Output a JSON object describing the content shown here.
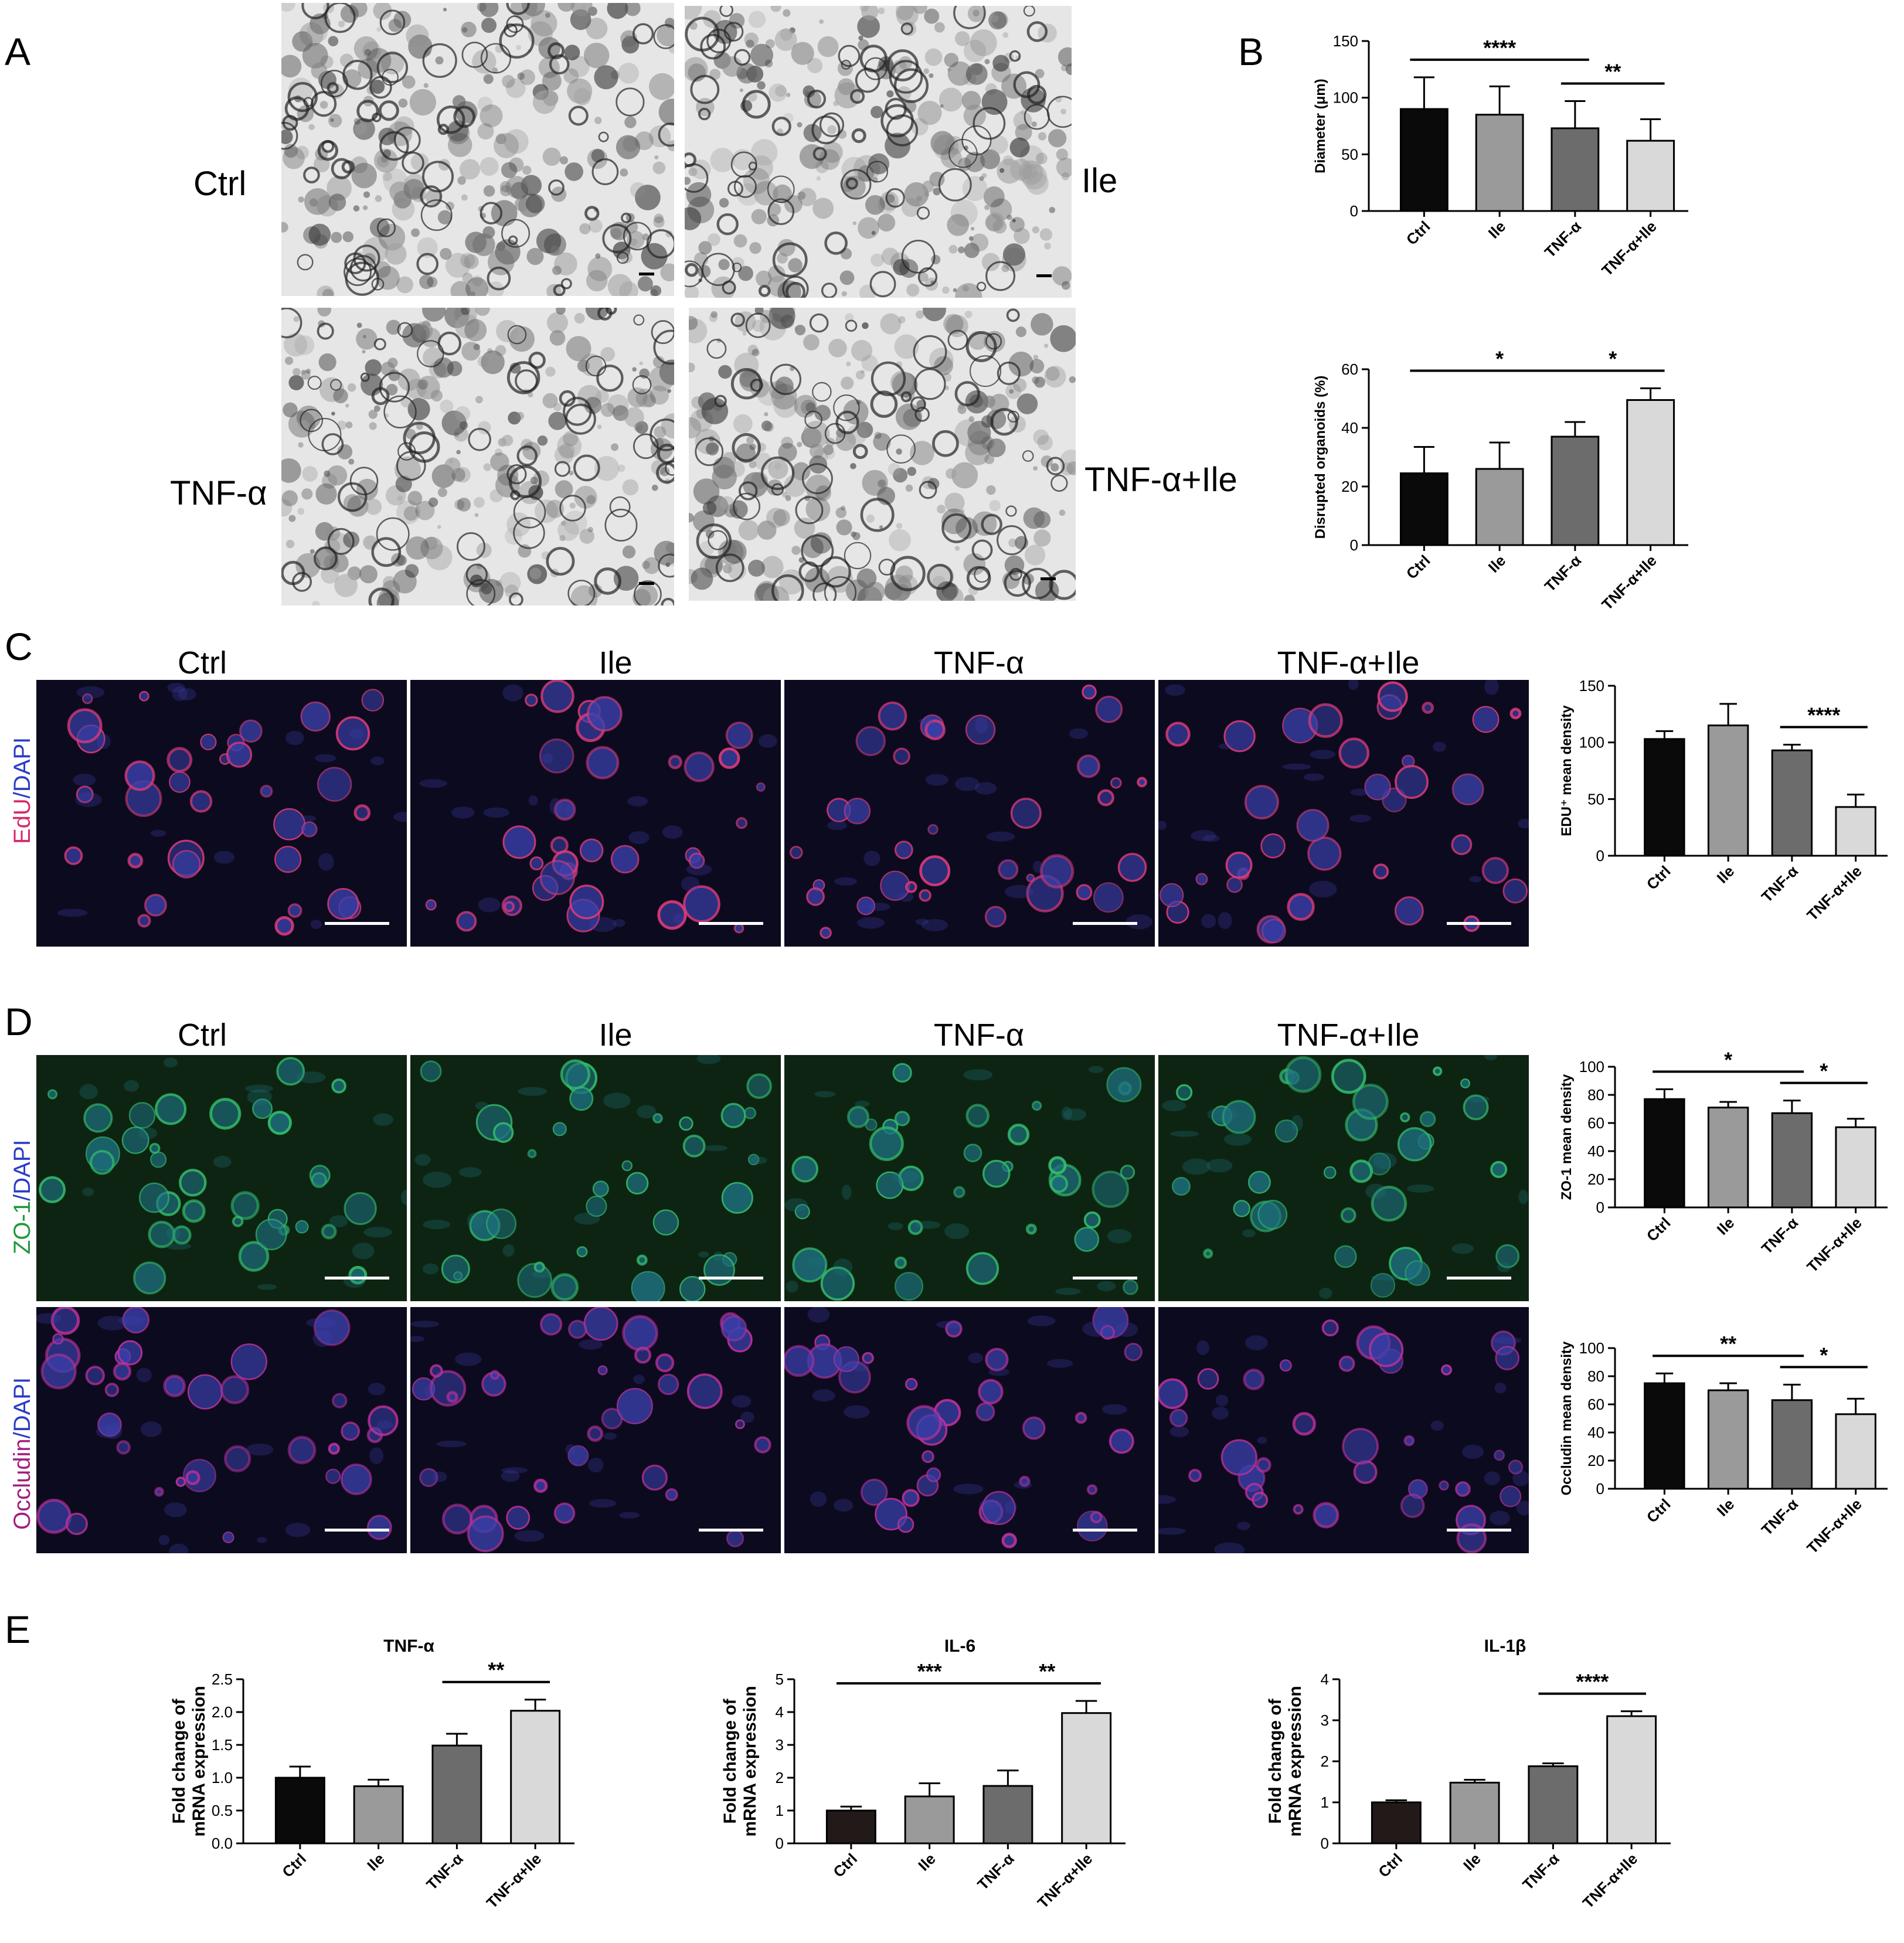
{
  "panels": {
    "A": "A",
    "B": "B",
    "C": "C",
    "D": "D",
    "E": "E"
  },
  "panel_a": {
    "conditions": [
      "Ctrl",
      "Ile",
      "TNF-α",
      "TNF-α+Ile"
    ]
  },
  "panel_c": {
    "columns": [
      "Ctrl",
      "Ile",
      "TNF-α",
      "TNF-α+Ile"
    ],
    "stain_label": {
      "part1": "EdU",
      "sep": "/",
      "part2": "DAPI"
    },
    "stain_colors": {
      "part1": "#d6296e",
      "part2": "#2b3cc4"
    }
  },
  "panel_d": {
    "columns": [
      "Ctrl",
      "Ile",
      "TNF-α",
      "TNF-α+Ile"
    ],
    "stain_label_top": {
      "part1": "ZO-1",
      "sep": "/",
      "part2": "DAPI"
    },
    "stain_label_bottom": {
      "part1": "Occludin",
      "sep": "/",
      "part2": "DAPI"
    },
    "stain_colors_top": {
      "part1": "#1f9a3c",
      "part2": "#2b3cc4"
    },
    "stain_colors_bottom": {
      "part1": "#a1207f",
      "part2": "#2b3cc4"
    }
  },
  "colors": {
    "bar_black": "#0a0a0a",
    "bar_midgray": "#9a9a9a",
    "bar_darkgray": "#6c6c6c",
    "bar_lightgray": "#d9d9d9",
    "bar_darkbrown": "#221a18",
    "fluor_bg": "#0c0a1e",
    "fluor_bg_green": "#0e2412"
  },
  "chart_data": [
    {
      "id": "diameter",
      "type": "bar",
      "title": "",
      "ylabel": "Diameter (μm)",
      "categories": [
        "Ctrl",
        "Ile",
        "TNF-α",
        "TNF-α+Ile"
      ],
      "values": [
        90,
        85,
        73,
        62
      ],
      "errors": [
        28,
        25,
        24,
        19
      ],
      "colors": [
        "#0a0a0a",
        "#9a9a9a",
        "#6c6c6c",
        "#d9d9d9"
      ],
      "ylim": [
        0,
        150
      ],
      "yticks": [
        "0",
        "50",
        "100",
        "150"
      ],
      "brackets": [
        {
          "from": 0,
          "to": 2,
          "label": "****"
        },
        {
          "from": 2,
          "to": 3,
          "label": "**"
        }
      ]
    },
    {
      "id": "disrupted",
      "type": "bar",
      "title": "",
      "ylabel": "Disrupted organoids (%)",
      "categories": [
        "Ctrl",
        "Ile",
        "TNF-α",
        "TNF-α+Ile"
      ],
      "values": [
        24.5,
        26,
        37,
        49.5
      ],
      "errors": [
        9,
        9,
        5,
        4
      ],
      "colors": [
        "#0a0a0a",
        "#9a9a9a",
        "#6c6c6c",
        "#d9d9d9"
      ],
      "ylim": [
        0,
        60
      ],
      "yticks": [
        "0",
        "20",
        "40",
        "60"
      ],
      "brackets": [
        {
          "from": 0,
          "to": 2,
          "label": "*"
        },
        {
          "from": 2,
          "to": 3,
          "label": "*"
        }
      ]
    },
    {
      "id": "edu",
      "type": "bar",
      "title": "",
      "ylabel": "EDU⁺ mean density",
      "categories": [
        "Ctrl",
        "Ile",
        "TNF-α",
        "TNF-α+Ile"
      ],
      "values": [
        103,
        115,
        93,
        43
      ],
      "errors": [
        7,
        19,
        5,
        11
      ],
      "colors": [
        "#0a0a0a",
        "#9a9a9a",
        "#6c6c6c",
        "#d9d9d9"
      ],
      "ylim": [
        0,
        150
      ],
      "yticks": [
        "0",
        "50",
        "100",
        "150"
      ],
      "brackets": [
        {
          "from": 2,
          "to": 3,
          "label": "****"
        }
      ]
    },
    {
      "id": "zo1",
      "type": "bar",
      "title": "",
      "ylabel": "ZO-1 mean density",
      "categories": [
        "Ctrl",
        "Ile",
        "TNF-α",
        "TNF-α+Ile"
      ],
      "values": [
        77,
        71,
        67,
        57
      ],
      "errors": [
        7,
        4,
        9,
        6
      ],
      "colors": [
        "#0a0a0a",
        "#9a9a9a",
        "#6c6c6c",
        "#d9d9d9"
      ],
      "ylim": [
        0,
        100
      ],
      "yticks": [
        "0",
        "20",
        "40",
        "60",
        "80",
        "100"
      ],
      "brackets": [
        {
          "from": 0,
          "to": 2,
          "label": "*"
        },
        {
          "from": 2,
          "to": 3,
          "label": "*"
        }
      ]
    },
    {
      "id": "occludin",
      "type": "bar",
      "title": "",
      "ylabel": "Occludin mean density",
      "categories": [
        "Ctrl",
        "Ile",
        "TNF-α",
        "TNF-α+Ile"
      ],
      "values": [
        75,
        70,
        63,
        53
      ],
      "errors": [
        7,
        5,
        11,
        11
      ],
      "colors": [
        "#0a0a0a",
        "#9a9a9a",
        "#6c6c6c",
        "#d9d9d9"
      ],
      "ylim": [
        0,
        100
      ],
      "yticks": [
        "0",
        "20",
        "40",
        "60",
        "80",
        "100"
      ],
      "brackets": [
        {
          "from": 0,
          "to": 2,
          "label": "**"
        },
        {
          "from": 2,
          "to": 3,
          "label": "*"
        }
      ]
    },
    {
      "id": "tnf",
      "type": "bar",
      "title": "TNF-α",
      "ylabel": "Fold change of mRNA expression",
      "categories": [
        "Ctrl",
        "Ile",
        "TNF-α",
        "TNF-α+Ile"
      ],
      "values": [
        1.0,
        0.87,
        1.49,
        2.02
      ],
      "errors": [
        0.17,
        0.1,
        0.18,
        0.17
      ],
      "colors": [
        "#0a0a0a",
        "#9a9a9a",
        "#6c6c6c",
        "#d9d9d9"
      ],
      "ylim": [
        0,
        2.5
      ],
      "yticks": [
        "0.0",
        "0.5",
        "1.0",
        "1.5",
        "2.0",
        "2.5"
      ],
      "brackets": [
        {
          "from": 2,
          "to": 3,
          "label": "**"
        }
      ]
    },
    {
      "id": "il6",
      "type": "bar",
      "title": "IL-6",
      "ylabel": "Fold change of mRNA expression",
      "categories": [
        "Ctrl",
        "Ile",
        "TNF-α",
        "TNF-α+Ile"
      ],
      "values": [
        1.0,
        1.43,
        1.75,
        3.97
      ],
      "errors": [
        0.12,
        0.4,
        0.47,
        0.37
      ],
      "colors": [
        "#221a18",
        "#9a9a9a",
        "#6c6c6c",
        "#d9d9d9"
      ],
      "ylim": [
        0,
        5
      ],
      "yticks": [
        "0",
        "1",
        "2",
        "3",
        "4",
        "5"
      ],
      "brackets": [
        {
          "from": 0,
          "to": 2,
          "label": "***"
        },
        {
          "from": 2,
          "to": 3,
          "label": "**"
        }
      ]
    },
    {
      "id": "il1b",
      "type": "bar",
      "title": "IL-1β",
      "ylabel": "Fold change of mRNA expression",
      "categories": [
        "Ctrl",
        "Ile",
        "TNF-α",
        "TNF-α+Ile"
      ],
      "values": [
        1.0,
        1.48,
        1.88,
        3.1
      ],
      "errors": [
        0.05,
        0.07,
        0.07,
        0.12
      ],
      "colors": [
        "#221a18",
        "#9a9a9a",
        "#6c6c6c",
        "#d9d9d9"
      ],
      "ylim": [
        0,
        4
      ],
      "yticks": [
        "0",
        "1",
        "2",
        "3",
        "4"
      ],
      "brackets": [
        {
          "from": 2,
          "to": 3,
          "label": "****"
        }
      ]
    }
  ]
}
